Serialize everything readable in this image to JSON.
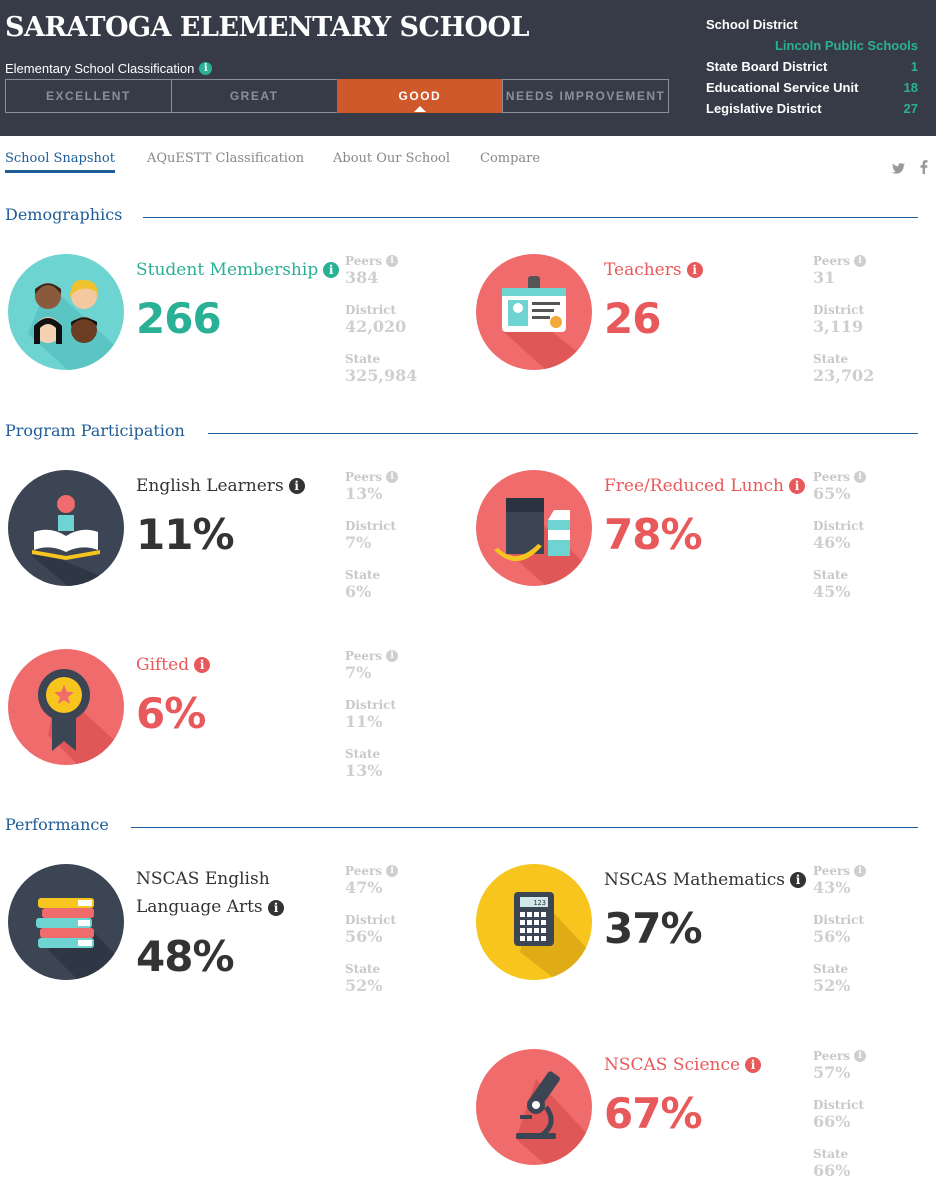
{
  "header": {
    "school_name": "SARATOGA ELEMENTARY SCHOOL",
    "classification_label": "Elementary School Classification",
    "classifications": [
      "EXCELLENT",
      "GREAT",
      "GOOD",
      "NEEDS IMPROVEMENT"
    ],
    "active_classification": "GOOD",
    "district": {
      "school_district_label": "School District",
      "school_district_value": "Lincoln Public Schools",
      "state_board_label": "State Board District",
      "state_board_value": "1",
      "esu_label": "Educational Service Unit",
      "esu_value": "18",
      "legislative_label": "Legislative District",
      "legislative_value": "27"
    }
  },
  "nav": {
    "tabs": [
      "School Snapshot",
      "AQuESTT Classification",
      "About Our School",
      "Compare"
    ],
    "active_tab": "School Snapshot",
    "social": [
      "twitter-icon",
      "facebook-icon"
    ]
  },
  "sections": {
    "demographics": "Demographics",
    "program": "Program Participation",
    "performance": "Performance"
  },
  "compare_labels": {
    "peers": "Peers",
    "district": "District",
    "state": "State"
  },
  "metrics": {
    "student_membership": {
      "label": "Student Membership",
      "value": "266",
      "peers": "384",
      "district": "42,020",
      "state": "325,984",
      "color": "#2ab095",
      "circle": "#6dd4d1",
      "icon": "students-icon"
    },
    "teachers": {
      "label": "Teachers",
      "value": "26",
      "peers": "31",
      "district": "3,119",
      "state": "23,702",
      "color": "#e8595b",
      "circle": "#f06b6b",
      "icon": "id-badge-icon"
    },
    "english_learners": {
      "label": "English Learners",
      "value": "11%",
      "peers": "13%",
      "district": "7%",
      "state": "6%",
      "color": "#333333",
      "circle": "#3c4554",
      "icon": "reader-icon"
    },
    "free_reduced_lunch": {
      "label": "Free/Reduced Lunch",
      "value": "78%",
      "peers": "65%",
      "district": "46%",
      "state": "45%",
      "color": "#e8595b",
      "circle": "#f06b6b",
      "icon": "lunch-bag-icon"
    },
    "gifted": {
      "label": "Gifted",
      "value": "6%",
      "peers": "7%",
      "district": "11%",
      "state": "13%",
      "color": "#e8595b",
      "circle": "#f06b6b",
      "icon": "award-ribbon-icon"
    },
    "nscas_ela": {
      "label": "NSCAS English Language Arts",
      "value": "48%",
      "peers": "47%",
      "district": "56%",
      "state": "52%",
      "color": "#333333",
      "circle": "#3c4554",
      "icon": "books-icon"
    },
    "nscas_math": {
      "label": "NSCAS Mathematics",
      "value": "37%",
      "peers": "43%",
      "district": "56%",
      "state": "52%",
      "color": "#333333",
      "circle": "#f7c51e",
      "icon": "calculator-icon"
    },
    "nscas_science": {
      "label": "NSCAS Science",
      "value": "67%",
      "peers": "57%",
      "district": "66%",
      "state": "66%",
      "color": "#e8595b",
      "circle": "#f06b6b",
      "icon": "microscope-icon"
    }
  },
  "calculator_display": "123"
}
